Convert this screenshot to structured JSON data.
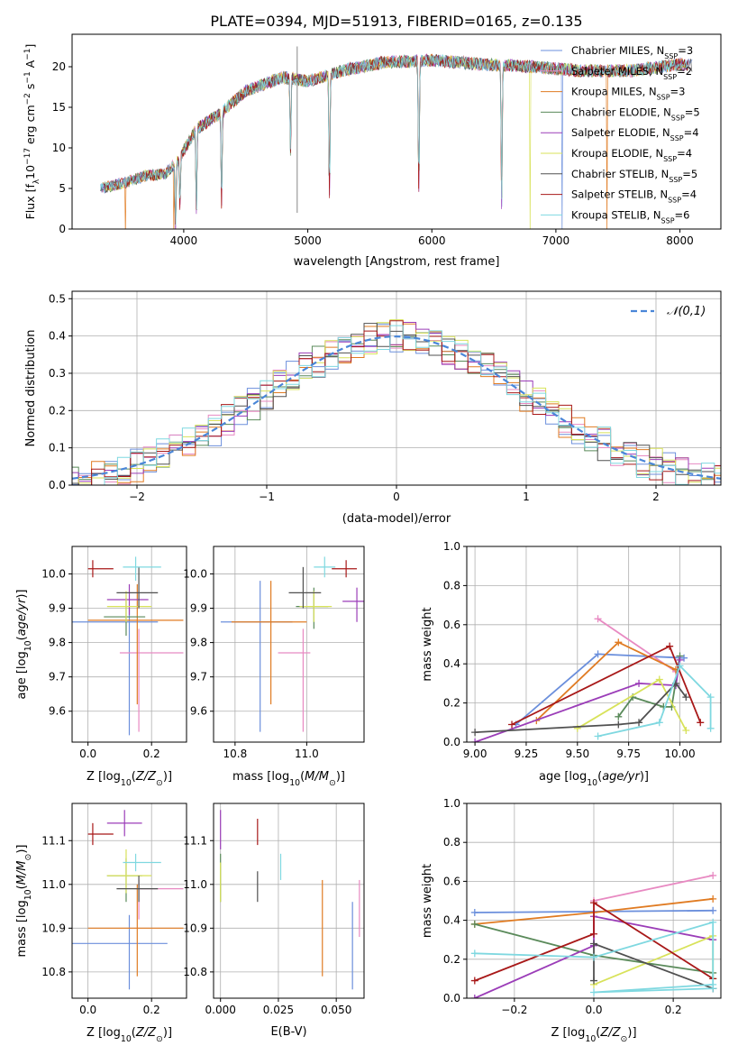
{
  "figure": {
    "title": "PLATE=0394, MJD=51913, FIBERID=0165, z=0.135"
  },
  "colors": [
    "#6b8fdc",
    "#e88ac2",
    "#e07b22",
    "#5a8a5a",
    "#9b3db8",
    "#d8e25a",
    "#505050",
    "#a81818",
    "#7fd8e0"
  ],
  "legend1": [
    "Chabrier MILES, N_SSP=3",
    "Salpeter MILES, N_SSP=2",
    "Kroupa MILES, N_SSP=3",
    "Chabrier ELODIE, N_SSP=5",
    "Salpeter ELODIE, N_SSP=4",
    "Kroupa ELODIE, N_SSP=4",
    "Chabrier STELIB, N_SSP=5",
    "Salpeter STELIB, N_SSP=4",
    "Kroupa STELIB, N_SSP=6"
  ],
  "legend2": "𝒩(0,1)",
  "chart_data": [
    {
      "id": "spectrum",
      "type": "line",
      "xlabel": "wavelength [Angstrom, rest frame]",
      "ylabel": "Flux [f_λ 10^-17 erg cm^-2 s^-1 A^-1]",
      "xlim": [
        3100,
        8330
      ],
      "ylim": [
        0,
        24
      ],
      "xticks": [
        4000,
        5000,
        6000,
        7000,
        8000
      ],
      "yticks": [
        0,
        5,
        10,
        15,
        20
      ],
      "continuum": [
        [
          3330,
          5
        ],
        [
          3500,
          5.6
        ],
        [
          3700,
          6.6
        ],
        [
          3850,
          6.8
        ],
        [
          3950,
          8.4
        ],
        [
          4100,
          12.3
        ],
        [
          4300,
          14.3
        ],
        [
          4500,
          17.0
        ],
        [
          4800,
          18.7
        ],
        [
          5000,
          18.2
        ],
        [
          5300,
          19.6
        ],
        [
          5600,
          20.5
        ],
        [
          6000,
          20.8
        ],
        [
          6400,
          20.3
        ],
        [
          6800,
          20.0
        ],
        [
          7200,
          19.5
        ],
        [
          7600,
          19.5
        ],
        [
          8000,
          20.3
        ],
        [
          8100,
          20.2
        ]
      ],
      "lines": [
        [
          3934,
          8
        ],
        [
          3969,
          6
        ],
        [
          4102,
          10.5
        ],
        [
          4305,
          11.5
        ],
        [
          4861,
          9
        ],
        [
          5175,
          15
        ],
        [
          5895,
          16.5
        ],
        [
          6563,
          17.5
        ]
      ],
      "dropouts": [
        [
          2,
          3530
        ],
        [
          2,
          3920
        ],
        [
          5,
          6790
        ],
        [
          0,
          7050
        ],
        [
          2,
          7410
        ]
      ],
      "spike": [
        4915,
        2
      ]
    },
    {
      "id": "residuals",
      "type": "step",
      "xlabel": "(data-model)/error",
      "ylabel": "Normed distribution",
      "xlim": [
        -2.5,
        2.5
      ],
      "ylim": [
        0,
        0.52
      ],
      "xticks": [
        -2,
        -1,
        0,
        1,
        2
      ],
      "yticks": [
        0.0,
        0.1,
        0.2,
        0.3,
        0.4,
        0.5
      ],
      "bin_width": 0.1,
      "gauss": {
        "name": "𝒩(0,1)",
        "mu": 0,
        "sigma": 1
      }
    },
    {
      "id": "Z-age",
      "type": "errorbar",
      "xlabel": "Z [log10(Z/Z⊙)]",
      "ylabel": "age [log10(age/yr)]",
      "xlim": [
        -0.05,
        0.31
      ],
      "ylim": [
        9.51,
        10.08
      ],
      "xticks": [
        0.0,
        0.2
      ],
      "yticks": [
        9.6,
        9.7,
        9.8,
        9.9,
        10.0
      ],
      "points": [
        {
          "x": 0.13,
          "xlo": -0.05,
          "xhi": 0.22,
          "y": 9.86,
          "ylo": 9.53,
          "yhi": 9.9
        },
        {
          "x": 0.16,
          "xlo": 0.1,
          "xhi": 0.3,
          "y": 9.77,
          "ylo": 9.54,
          "yhi": 9.84
        },
        {
          "x": 0.155,
          "xlo": 0.0,
          "xhi": 0.3,
          "y": 9.865,
          "ylo": 9.62,
          "yhi": 9.97
        },
        {
          "x": 0.12,
          "xlo": 0.05,
          "xhi": 0.18,
          "y": 9.875,
          "ylo": 9.82,
          "yhi": 9.93
        },
        {
          "x": 0.13,
          "xlo": 0.06,
          "xhi": 0.19,
          "y": 9.925,
          "ylo": 9.88,
          "yhi": 9.97
        },
        {
          "x": 0.12,
          "xlo": 0.06,
          "xhi": 0.2,
          "y": 9.905,
          "ylo": 9.86,
          "yhi": 9.95
        },
        {
          "x": 0.16,
          "xlo": 0.09,
          "xhi": 0.22,
          "y": 9.945,
          "ylo": 9.9,
          "yhi": 10.02
        },
        {
          "x": 0.015,
          "xlo": 0.0,
          "xhi": 0.08,
          "y": 10.015,
          "ylo": 9.99,
          "yhi": 10.04
        },
        {
          "x": 0.15,
          "xlo": 0.11,
          "xhi": 0.23,
          "y": 10.02,
          "ylo": 9.98,
          "yhi": 10.05
        }
      ]
    },
    {
      "id": "mass-age",
      "type": "errorbar",
      "xlabel": "mass [log10(M/M⊙)]",
      "ylabel": "",
      "xlim": [
        10.74,
        11.16
      ],
      "ylim": [
        9.51,
        10.08
      ],
      "xticks": [
        10.8,
        11.0
      ],
      "yticks": [
        9.6,
        9.7,
        9.8,
        9.9,
        10.0
      ],
      "points": [
        {
          "x": 10.87,
          "xlo": 10.76,
          "xhi": 10.96,
          "y": 9.86,
          "ylo": 9.54,
          "yhi": 9.98
        },
        {
          "x": 10.99,
          "xlo": 10.92,
          "xhi": 11.01,
          "y": 9.77,
          "ylo": 9.54,
          "yhi": 9.84
        },
        {
          "x": 10.9,
          "xlo": 10.79,
          "xhi": 11.0,
          "y": 9.86,
          "ylo": 9.62,
          "yhi": 9.98
        },
        {
          "x": 11.02,
          "xlo": 10.97,
          "xhi": 11.06,
          "y": 9.905,
          "ylo": 9.84,
          "yhi": 9.96
        },
        {
          "x": 11.14,
          "xlo": 11.1,
          "xhi": 11.16,
          "y": 9.92,
          "ylo": 9.86,
          "yhi": 9.96
        },
        {
          "x": 11.02,
          "xlo": 10.98,
          "xhi": 11.07,
          "y": 9.905,
          "ylo": 9.86,
          "yhi": 9.95
        },
        {
          "x": 10.99,
          "xlo": 10.95,
          "xhi": 11.04,
          "y": 9.945,
          "ylo": 9.9,
          "yhi": 10.02
        },
        {
          "x": 11.11,
          "xlo": 11.07,
          "xhi": 11.14,
          "y": 10.015,
          "ylo": 9.99,
          "yhi": 10.04
        },
        {
          "x": 11.05,
          "xlo": 11.02,
          "xhi": 11.08,
          "y": 10.02,
          "ylo": 9.99,
          "yhi": 10.05
        }
      ]
    },
    {
      "id": "age-weight",
      "type": "line",
      "xlabel": "age [log10(age/yr)]",
      "ylabel": "mass weight",
      "xlim": [
        8.96,
        10.2
      ],
      "ylim": [
        0,
        1
      ],
      "xticks": [
        9.0,
        9.25,
        9.5,
        9.75,
        10.0
      ],
      "yticks": [
        0.0,
        0.2,
        0.4,
        0.6,
        0.8,
        1.0
      ],
      "series": [
        {
          "x": [
            9.2,
            9.6,
            10.02
          ],
          "y": [
            0.09,
            0.45,
            0.43
          ]
        },
        {
          "x": [
            9.6,
            9.98
          ],
          "y": [
            0.63,
            0.36
          ]
        },
        {
          "x": [
            9.3,
            9.7,
            9.98
          ],
          "y": [
            0.11,
            0.51,
            0.37
          ]
        },
        {
          "x": [
            9.7,
            9.77,
            9.92,
            9.96,
            10.0
          ],
          "y": [
            0.13,
            0.23,
            0.18,
            0.18,
            0.44
          ]
        },
        {
          "x": [
            9.0,
            9.8,
            9.98,
            10.0
          ],
          "y": [
            0.0,
            0.3,
            0.29,
            0.42
          ]
        },
        {
          "x": [
            9.5,
            9.9,
            10.03
          ],
          "y": [
            0.07,
            0.32,
            0.06
          ]
        },
        {
          "x": [
            9.0,
            9.7,
            9.8,
            9.98,
            10.03
          ],
          "y": [
            0.05,
            0.09,
            0.1,
            0.3,
            0.23
          ]
        },
        {
          "x": [
            9.18,
            9.95,
            10.1
          ],
          "y": [
            0.09,
            0.49,
            0.1
          ]
        },
        {
          "x": [
            9.6,
            9.9,
            10.0,
            10.15,
            10.15
          ],
          "y": [
            0.03,
            0.1,
            0.39,
            0.23,
            0.07
          ]
        }
      ]
    },
    {
      "id": "Z-mass",
      "type": "errorbar",
      "xlabel": "Z [log10(Z/Z⊙)]",
      "ylabel": "mass [log10(M/M⊙)]",
      "xlim": [
        -0.05,
        0.31
      ],
      "ylim": [
        10.74,
        11.185
      ],
      "xticks": [
        0.0,
        0.2
      ],
      "yticks": [
        10.8,
        10.9,
        11.0,
        11.1
      ],
      "points": [
        {
          "x": 0.13,
          "xlo": -0.05,
          "xhi": 0.25,
          "y": 10.865,
          "ylo": 10.76,
          "yhi": 10.93
        },
        {
          "x": 0.16,
          "xlo": 0.15,
          "xhi": 0.3,
          "y": 10.99,
          "ylo": 10.92,
          "yhi": 11.01
        },
        {
          "x": 0.155,
          "xlo": 0.0,
          "xhi": 0.3,
          "y": 10.9,
          "ylo": 10.79,
          "yhi": 11.0
        },
        {
          "x": 0.12,
          "xlo": 0.06,
          "xhi": 0.17,
          "y": 11.02,
          "ylo": 10.96,
          "yhi": 11.06
        },
        {
          "x": 0.115,
          "xlo": 0.06,
          "xhi": 0.17,
          "y": 11.14,
          "ylo": 11.11,
          "yhi": 11.17
        },
        {
          "x": 0.12,
          "xlo": 0.06,
          "xhi": 0.2,
          "y": 11.02,
          "ylo": 10.98,
          "yhi": 11.08
        },
        {
          "x": 0.16,
          "xlo": 0.09,
          "xhi": 0.22,
          "y": 10.99,
          "ylo": 10.96,
          "yhi": 11.02
        },
        {
          "x": 0.015,
          "xlo": 0.0,
          "xhi": 0.08,
          "y": 11.115,
          "ylo": 11.09,
          "yhi": 11.14
        },
        {
          "x": 0.15,
          "xlo": 0.11,
          "xhi": 0.23,
          "y": 11.05,
          "ylo": 11.03,
          "yhi": 11.07
        }
      ]
    },
    {
      "id": "ebv-mass",
      "type": "errorbar",
      "xlabel": "E(B-V)",
      "ylabel": "",
      "xlim": [
        -0.003,
        0.062
      ],
      "ylim": [
        10.74,
        11.185
      ],
      "xticks": [
        0.0,
        0.025,
        0.05
      ],
      "yticks": [
        10.8,
        10.9,
        11.0,
        11.1
      ],
      "points": [
        {
          "x": 0.057,
          "y": 10.865,
          "ylo": 10.76,
          "yhi": 10.96
        },
        {
          "x": 0.06,
          "y": 10.95,
          "ylo": 10.88,
          "yhi": 11.01
        },
        {
          "x": 0.044,
          "y": 10.9,
          "ylo": 10.79,
          "yhi": 11.01
        },
        {
          "x": 0.0,
          "y": 11.02,
          "ylo": 10.96,
          "yhi": 11.07
        },
        {
          "x": 0.0,
          "y": 11.13,
          "ylo": 11.08,
          "yhi": 11.17
        },
        {
          "x": 0.0,
          "y": 11.01,
          "ylo": 10.96,
          "yhi": 11.05
        },
        {
          "x": 0.016,
          "y": 10.99,
          "ylo": 10.96,
          "yhi": 11.03
        },
        {
          "x": 0.016,
          "y": 11.12,
          "ylo": 11.09,
          "yhi": 11.15
        },
        {
          "x": 0.026,
          "y": 11.04,
          "ylo": 11.01,
          "yhi": 11.07
        }
      ]
    },
    {
      "id": "Z-weight",
      "type": "line",
      "xlabel": "Z [log10(Z/Z⊙)]",
      "ylabel": "mass weight",
      "xlim": [
        -0.32,
        0.32
      ],
      "ylim": [
        0,
        1
      ],
      "xticks": [
        -0.2,
        0.0,
        0.2
      ],
      "yticks": [
        0.0,
        0.2,
        0.4,
        0.6,
        0.8,
        1.0
      ],
      "series": [
        {
          "x": [
            -0.3,
            0.3
          ],
          "y": [
            0.44,
            0.45
          ]
        },
        {
          "x": [
            0.0,
            0.3
          ],
          "y": [
            0.5,
            0.63
          ]
        },
        {
          "x": [
            -0.3,
            0.0,
            0.3
          ],
          "y": [
            0.38,
            0.44,
            0.51
          ]
        },
        {
          "x": [
            -0.3,
            0.0,
            0.3,
            0.3
          ],
          "y": [
            0.38,
            0.22,
            0.13,
            0.1
          ]
        },
        {
          "x": [
            -0.3,
            0.0,
            0.0,
            0.3
          ],
          "y": [
            0.0,
            0.27,
            0.42,
            0.3
          ]
        },
        {
          "x": [
            0.0,
            0.3,
            0.3
          ],
          "y": [
            0.07,
            0.32,
            0.1
          ]
        },
        {
          "x": [
            0.0,
            0.0,
            0.3,
            0.3
          ],
          "y": [
            0.09,
            0.28,
            0.05,
            0.05
          ]
        },
        {
          "x": [
            -0.3,
            0.0,
            0.0,
            0.3
          ],
          "y": [
            0.09,
            0.33,
            0.49,
            0.1
          ]
        },
        {
          "x": [
            -0.3,
            0.0,
            0.3,
            0.3,
            0.0,
            0.3
          ],
          "y": [
            0.23,
            0.21,
            0.39,
            0.07,
            0.03,
            0.05
          ]
        }
      ]
    }
  ]
}
